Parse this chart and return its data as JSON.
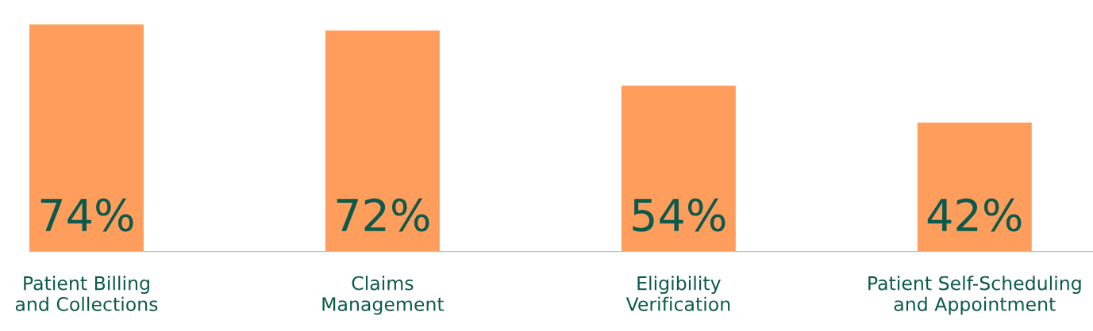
{
  "chart_data": {
    "type": "bar",
    "categories": [
      "Patient Billing\nand Collections",
      "Claims\nManagement",
      "Eligibility\nVerification",
      "Patient Self-Scheduling\nand Appointment"
    ],
    "values": [
      74,
      72,
      54,
      42
    ],
    "value_labels": [
      "74%",
      "72%",
      "54%",
      "42%"
    ],
    "color": "#ff9d5c",
    "grid": false,
    "legend": false
  }
}
